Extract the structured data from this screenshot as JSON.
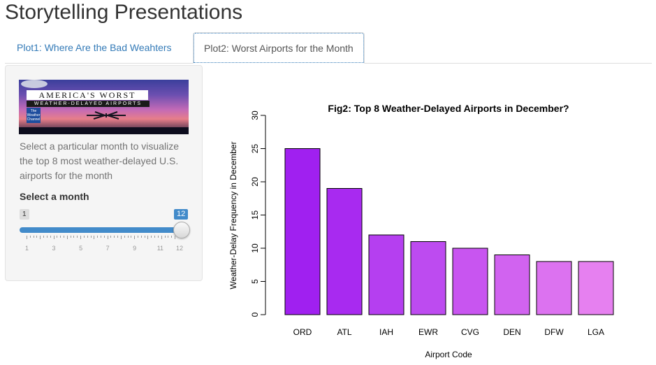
{
  "app": {
    "title": "Storytelling Presentations"
  },
  "tabs": [
    {
      "label": "Plot1: Where Are the Bad Weahters",
      "active": false
    },
    {
      "label": "Plot2: Worst Airports for the Month",
      "active": true
    }
  ],
  "sidebar": {
    "banner": {
      "line1": "AMERICA'S WORST",
      "line2": "WEATHER-DELAYED AIRPORTS",
      "logo": "The Weather Channel"
    },
    "description": "Select a particular month to visualize the top 8 most weather-delayed U.S. airports for the month",
    "slider": {
      "label": "Select a month",
      "min_label": "1",
      "max_label": "12",
      "value": 12,
      "min": 1,
      "max": 12,
      "tick_labels": [
        "1",
        "3",
        "5",
        "7",
        "9",
        "11",
        "12"
      ]
    }
  },
  "chart_data": {
    "type": "bar",
    "title": "Fig2: Top 8 Weather-Delayed Airports in December?",
    "xlabel": "Airport Code",
    "ylabel": "Weather-Delay Frequency in December",
    "categories": [
      "ORD",
      "ATL",
      "IAH",
      "EWR",
      "CVG",
      "DEN",
      "DFW",
      "LGA"
    ],
    "values": [
      25,
      19,
      12,
      11,
      10,
      9,
      8,
      8
    ],
    "ylim": [
      0,
      30
    ],
    "yticks": [
      "0",
      "5",
      "10",
      "15",
      "20",
      "25",
      "30"
    ],
    "bar_colors": [
      "#a020f0",
      "#a82af0",
      "#b53ff0",
      "#bd4bf0",
      "#c855f0",
      "#d163f0",
      "#dc72f0",
      "#e680f0"
    ],
    "grid": false
  }
}
